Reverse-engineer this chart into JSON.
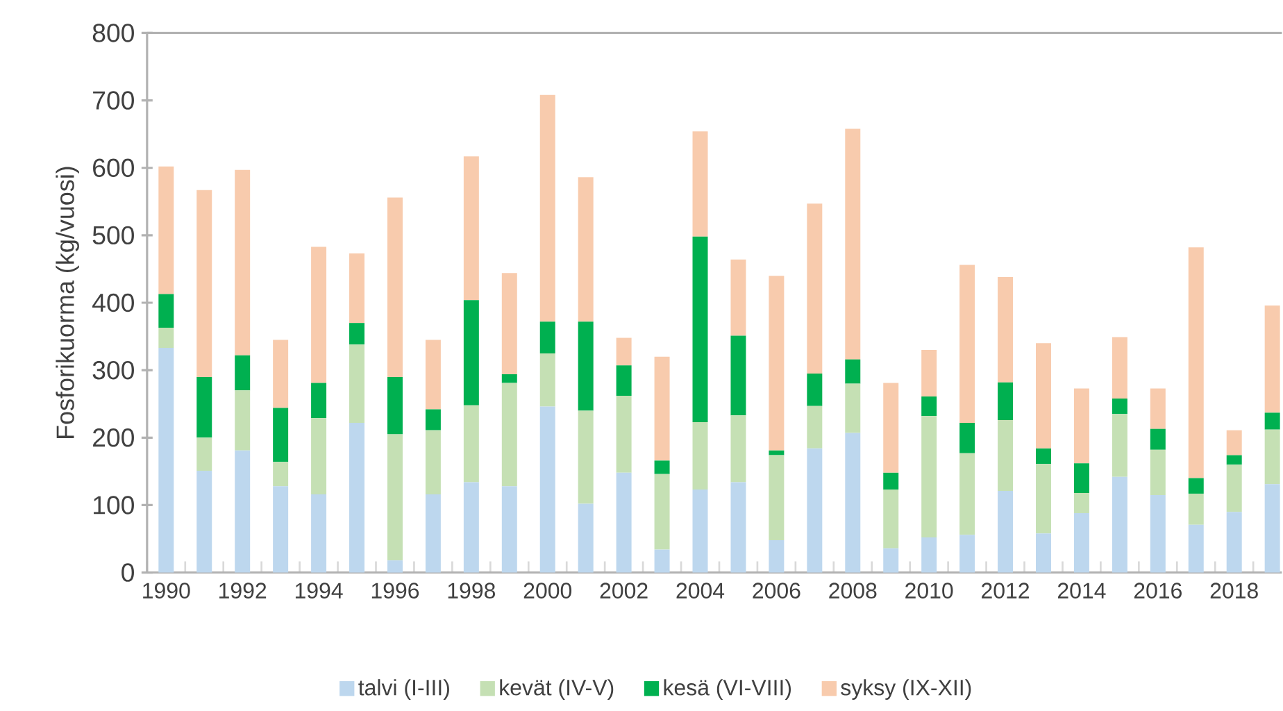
{
  "chart_data": {
    "type": "bar",
    "stacked": true,
    "ylabel": "Fosforikuorma (kg/vuosi)",
    "categories": [
      "1990",
      null,
      "1992",
      null,
      "1994",
      null,
      "1996",
      null,
      "1998",
      null,
      "2000",
      null,
      "2002",
      null,
      "2004",
      null,
      "2006",
      null,
      "2008",
      null,
      "2010",
      null,
      "2012",
      null,
      "2014",
      null,
      "2016",
      null,
      "2018",
      null
    ],
    "series": [
      {
        "name": "talvi (I-III)",
        "color": "#bdd7ee",
        "values": [
          333,
          151,
          181,
          128,
          116,
          222,
          18,
          116,
          134,
          128,
          246,
          102,
          148,
          34,
          123,
          134,
          48,
          184,
          207,
          36,
          52,
          56,
          121,
          58,
          88,
          142,
          115,
          71,
          90,
          131
        ]
      },
      {
        "name": "kevät (IV-V)",
        "color": "#c5e0b4",
        "values": [
          30,
          49,
          89,
          36,
          113,
          116,
          187,
          95,
          114,
          153,
          79,
          138,
          114,
          112,
          100,
          99,
          126,
          63,
          73,
          87,
          180,
          121,
          105,
          103,
          30,
          93,
          67,
          46,
          70,
          81
        ]
      },
      {
        "name": "kesä (VI-VIII)",
        "color": "#00b050",
        "values": [
          50,
          90,
          52,
          80,
          52,
          32,
          85,
          31,
          156,
          13,
          47,
          132,
          45,
          20,
          275,
          118,
          7,
          48,
          36,
          25,
          29,
          45,
          56,
          23,
          44,
          23,
          31,
          23,
          14,
          25
        ]
      },
      {
        "name": "syksy (IX-XII)",
        "color": "#f8cbad",
        "values": [
          189,
          277,
          275,
          101,
          202,
          103,
          266,
          103,
          213,
          150,
          336,
          214,
          41,
          154,
          156,
          113,
          259,
          252,
          342,
          133,
          69,
          234,
          156,
          156,
          111,
          91,
          60,
          342,
          37,
          159
        ]
      }
    ],
    "ylim": [
      0,
      800
    ],
    "yticks": [
      0,
      100,
      200,
      300,
      400,
      500,
      600,
      700,
      800
    ],
    "legend": "bottom"
  }
}
